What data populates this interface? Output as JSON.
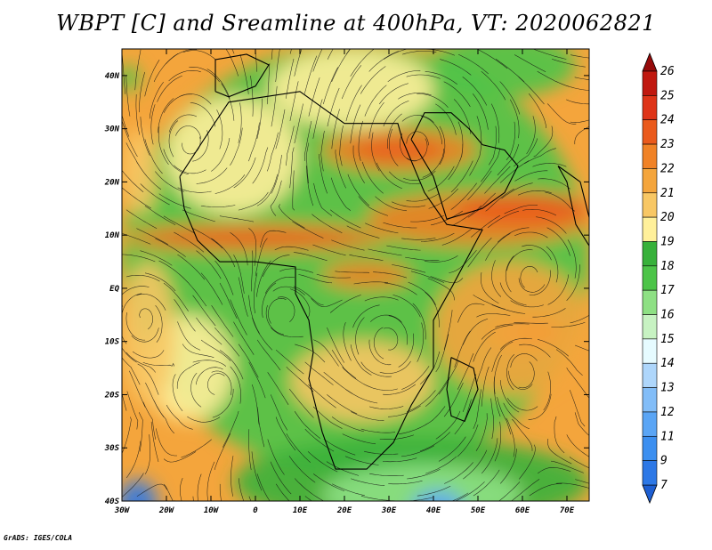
{
  "title": "WBPT [C] and Sreamline at 400hPa, VT: 2020062821",
  "credit": "GrADS: IGES/COLA",
  "chart_data": {
    "type": "heatmap",
    "title": "WBPT [C] and Sreamline at 400hPa, VT: 2020062821",
    "variable": "Wet-bulb potential temperature (C) with streamlines at 400hPa",
    "x_ticks": [
      "30W",
      "20W",
      "10W",
      "0",
      "10E",
      "20E",
      "30E",
      "40E",
      "50E",
      "60E",
      "70E"
    ],
    "x_values": [
      -30,
      -20,
      -10,
      0,
      10,
      20,
      30,
      40,
      50,
      60,
      70
    ],
    "y_ticks": [
      "40N",
      "30N",
      "20N",
      "10N",
      "EQ",
      "10S",
      "20S",
      "30S",
      "40S"
    ],
    "y_values": [
      40,
      30,
      20,
      10,
      0,
      -10,
      -20,
      -30,
      -40
    ],
    "xlim": [
      -30,
      75
    ],
    "ylim": [
      -40,
      45
    ],
    "colorbar": {
      "levels": [
        "7",
        "9",
        "11",
        "12",
        "13",
        "14",
        "15",
        "16",
        "17",
        "18",
        "19",
        "20",
        "21",
        "22",
        "23",
        "24",
        "25",
        "26"
      ],
      "colors": [
        "#1e5fd2",
        "#2d78e6",
        "#3c8ff0",
        "#5aa5f5",
        "#82bdf8",
        "#aed6fb",
        "#e6fbff",
        "#c7f2c2",
        "#8ee084",
        "#4cc448",
        "#37b13a",
        "#fff09a",
        "#f8c764",
        "#f4a53c",
        "#f08226",
        "#ea5a1c",
        "#de3418",
        "#c0180f",
        "#960a0a"
      ]
    },
    "streamlines": true,
    "coastlines": true
  }
}
